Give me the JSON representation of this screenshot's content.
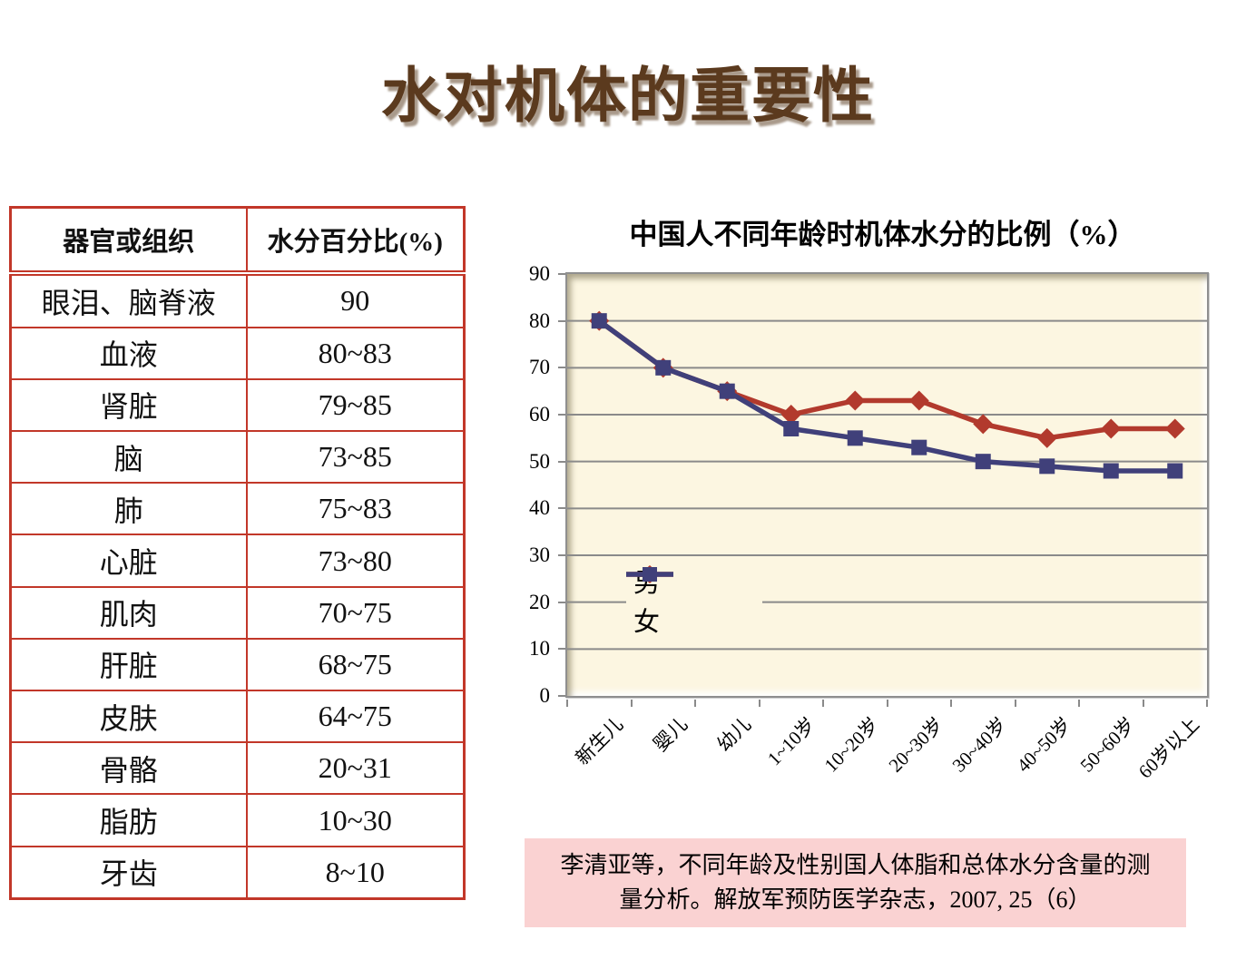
{
  "page": {
    "title": "水对机体的重要性"
  },
  "table": {
    "headers": [
      "器官或组织",
      "水分百分比(%)"
    ],
    "rows": [
      {
        "organ": "眼泪、脑脊液",
        "value": "90"
      },
      {
        "organ": "血液",
        "value": "80~83"
      },
      {
        "organ": "肾脏",
        "value": "79~85"
      },
      {
        "organ": "脑",
        "value": "73~85"
      },
      {
        "organ": "肺",
        "value": "75~83"
      },
      {
        "organ": "心脏",
        "value": "73~80"
      },
      {
        "organ": "肌肉",
        "value": "70~75"
      },
      {
        "organ": "肝脏",
        "value": "68~75"
      },
      {
        "organ": "皮肤",
        "value": "64~75"
      },
      {
        "organ": "骨骼",
        "value": "20~31"
      },
      {
        "organ": "脂肪",
        "value": "10~30"
      },
      {
        "organ": "牙齿",
        "value": "8~10"
      }
    ]
  },
  "chart_data": {
    "type": "line",
    "title": "中国人不同年龄时机体水分的比例（%）",
    "categories": [
      "新生儿",
      "婴儿",
      "幼儿",
      "1~10岁",
      "10~20岁",
      "20~30岁",
      "30~40岁",
      "40~50岁",
      "50~60岁",
      "60岁以上"
    ],
    "series": [
      {
        "name": "男",
        "marker": "diamond",
        "color": "#B23A2D",
        "values": [
          80,
          70,
          65,
          60,
          63,
          63,
          58,
          55,
          57,
          57
        ]
      },
      {
        "name": "女",
        "marker": "square",
        "color": "#40407A",
        "values": [
          80,
          70,
          65,
          57,
          55,
          53,
          50,
          49,
          48,
          48
        ]
      }
    ],
    "xlabel": "",
    "ylabel": "",
    "ylim": [
      0,
      90
    ],
    "ytick_step": 10,
    "grid": true,
    "legend_position": "inside-left",
    "plot_background": "#FCF6E1",
    "gridline_color": "#8A8A8A"
  },
  "citation": {
    "line1": "李清亚等，不同年龄及性别国人体脂和总体水分含量的测",
    "line2": "量分析。解放军预防医学杂志，2007, 25（6）"
  },
  "colors": {
    "title_text": "#5B3A1E",
    "table_border": "#C23729",
    "citation_background": "#FAD2D2"
  }
}
